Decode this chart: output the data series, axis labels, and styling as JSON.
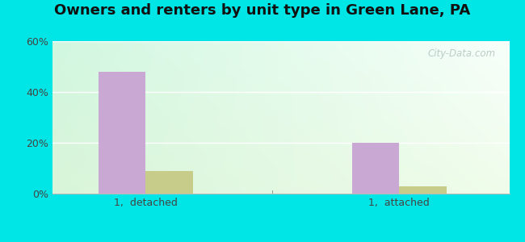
{
  "title": "Owners and renters by unit type in Green Lane, PA",
  "categories": [
    "1,  detached",
    "1,  attached"
  ],
  "owner_values": [
    48,
    20
  ],
  "renter_values": [
    9,
    3
  ],
  "owner_color": "#c9a8d4",
  "renter_color": "#c8cc8a",
  "bar_width": 0.28,
  "ylim": [
    0,
    60
  ],
  "yticks": [
    0,
    20,
    40,
    60
  ],
  "ytick_labels": [
    "0%",
    "20%",
    "40%",
    "60%"
  ],
  "outer_color": "#00e5e5",
  "watermark": "City-Data.com",
  "title_fontsize": 13,
  "bg_topleft": [
    0.82,
    0.97,
    0.88
  ],
  "bg_topright": [
    0.97,
    1.0,
    0.98
  ],
  "bg_bottomleft": [
    0.85,
    0.96,
    0.85
  ],
  "bg_bottomright": [
    0.94,
    0.99,
    0.92
  ]
}
